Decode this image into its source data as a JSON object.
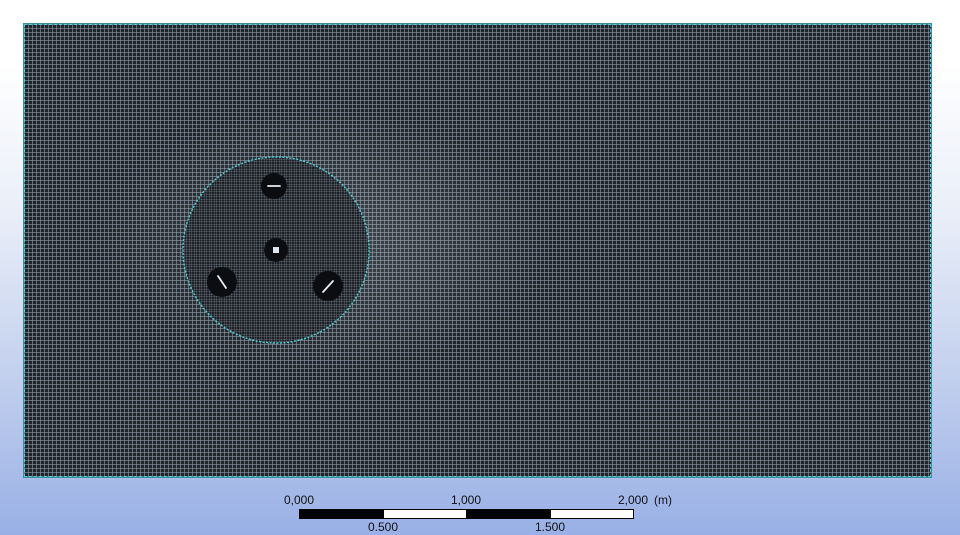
{
  "viewport": {
    "background_top": "#ffffff",
    "background_bottom": "#99b0e6",
    "mesh_line_color": "#96a5b4",
    "mesh_fill_color": "#20252c",
    "boundary_color": "#4fd0d8"
  },
  "scale_bar": {
    "top_labels": [
      "0,000",
      "1,000",
      "2,000"
    ],
    "unit": "(m)",
    "bottom_labels": [
      "0.500",
      "1.500"
    ]
  }
}
